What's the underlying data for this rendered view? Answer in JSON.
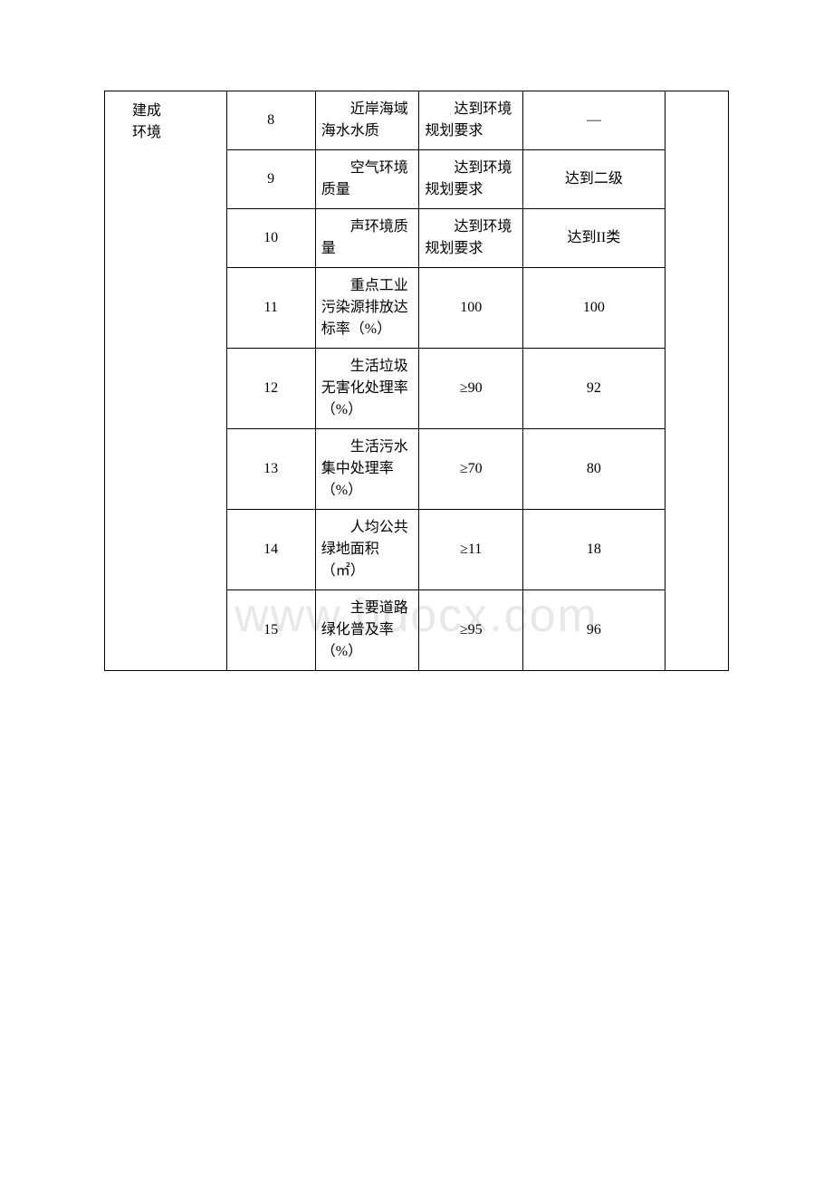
{
  "watermark": "www.bdocx.com",
  "category": {
    "line1": "建成",
    "line2": "环境"
  },
  "rows": [
    {
      "num": "8",
      "indicator": "近岸海域海水水质",
      "standard": "达到环境规划要求",
      "standardIndented": true,
      "value": "—"
    },
    {
      "num": "9",
      "indicator": "空气环境质量",
      "standard": "达到环境规划要求",
      "standardIndented": true,
      "value": "达到二级"
    },
    {
      "num": "10",
      "indicator": "声环境质量",
      "standard": "达到环境规划要求",
      "standardIndented": true,
      "value": "达到II类"
    },
    {
      "num": "11",
      "indicator": "重点工业污染源排放达标率（%）",
      "standard": "100",
      "standardIndented": false,
      "value": "100"
    },
    {
      "num": "12",
      "indicator": "生活垃圾无害化处理率（%）",
      "standard": "≥90",
      "standardIndented": false,
      "value": "92"
    },
    {
      "num": "13",
      "indicator": "生活污水集中处理率（%）",
      "standard": "≥70",
      "standardIndented": false,
      "value": "80"
    },
    {
      "num": "14",
      "indicator": "人均公共绿地面积（㎡）",
      "standard": "≥11",
      "standardIndented": false,
      "value": "18"
    },
    {
      "num": "15",
      "indicator": "主要道路绿化普及率（%）",
      "standard": "≥95",
      "standardIndented": false,
      "value": "96"
    }
  ]
}
